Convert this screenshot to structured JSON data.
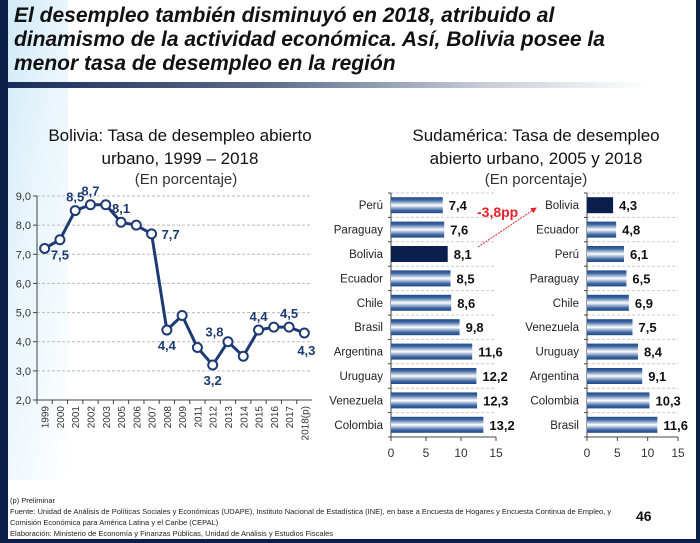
{
  "slide": {
    "title_lines": [
      "El desempleo también disminuyó en 2018, atribuido al",
      "dinamismo de la actividad económica. Así, Bolivia posee la",
      "menor tasa de desempleo en la región"
    ],
    "page_number": "46",
    "footer": [
      "(p) Preliminar",
      "Fuente: Unidad de Análisis de Políticas Sociales y Económicas (UDAPE), Instituto Nacional de Estadística (INE), en base a Encuesta de Hogares y Encuesta Continua de Empleo, y Comisión Económica para América Latina y el Caribe (CEPAL)",
      "Elaboración: Ministerio de Economía y Finanzas Públicas, Unidad de Análisis y Estudios Fiscales"
    ],
    "colors": {
      "line": "#1d3a73",
      "bar": "#2a5a9a",
      "highlight": "#0a1f4d",
      "annotation": "#e8202a"
    }
  },
  "chart_data": [
    {
      "type": "line",
      "title_lines": [
        "Bolivia: Tasa de desempleo abierto",
        "urbano, 1999 – 2018"
      ],
      "subtitle": "(En porcentaje)",
      "categories": [
        "1999",
        "2000",
        "2001",
        "2002",
        "2003",
        "2005",
        "2006",
        "2007",
        "2008",
        "2009",
        "2011",
        "2012",
        "2013",
        "2014",
        "2015",
        "2016",
        "2017",
        "2018(p)"
      ],
      "values": [
        7.2,
        7.5,
        8.5,
        8.7,
        8.7,
        8.1,
        8.0,
        7.7,
        4.4,
        4.9,
        3.8,
        3.2,
        4.0,
        3.5,
        4.4,
        4.5,
        4.5,
        4.3
      ],
      "data_labels": [
        null,
        "7,5",
        "8,5",
        "8,7",
        null,
        "8,1",
        null,
        "7,7",
        "4,4",
        null,
        "3,8",
        "3,2",
        null,
        null,
        "4,4",
        null,
        "4,5",
        "4,3"
      ],
      "ylim": [
        2.0,
        9.0
      ],
      "yticks": [
        "2,0",
        "3,0",
        "4,0",
        "5,0",
        "6,0",
        "7,0",
        "8,0",
        "9,0"
      ],
      "grid": true
    },
    {
      "type": "bar",
      "orientation": "horizontal",
      "title_lines": [
        "Sudamérica: Tasa de desempleo",
        "abierto urbano, 2005 y 2018"
      ],
      "subtitle": "(En porcentaje)",
      "panel": "2005",
      "categories": [
        "Perú",
        "Paraguay",
        "Bolivia",
        "Ecuador",
        "Chile",
        "Brasil",
        "Argentina",
        "Uruguay",
        "Venezuela",
        "Colombia"
      ],
      "values": [
        7.4,
        7.6,
        8.1,
        8.5,
        8.6,
        9.8,
        11.6,
        12.2,
        12.3,
        13.2
      ],
      "labels": [
        "7,4",
        "7,6",
        "8,1",
        "8,5",
        "8,6",
        "9,8",
        "11,6",
        "12,2",
        "12,3",
        "13,2"
      ],
      "highlight": "Bolivia",
      "xlim": [
        0,
        15
      ],
      "xticks": [
        "0",
        "5",
        "10",
        "15"
      ]
    },
    {
      "type": "bar",
      "orientation": "horizontal",
      "panel": "2018",
      "categories": [
        "Bolivia",
        "Ecuador",
        "Perú",
        "Paraguay",
        "Chile",
        "Venezuela",
        "Uruguay",
        "Argentina",
        "Colombia",
        "Brasil"
      ],
      "values": [
        4.3,
        4.8,
        6.1,
        6.5,
        6.9,
        7.5,
        8.4,
        9.1,
        10.3,
        11.6
      ],
      "labels": [
        "4,3",
        "4,8",
        "6,1",
        "6,5",
        "6,9",
        "7,5",
        "8,4",
        "9,1",
        "10,3",
        "11,6"
      ],
      "highlight": "Bolivia",
      "xlim": [
        0,
        15
      ],
      "xticks": [
        "0",
        "5",
        "10",
        "15"
      ],
      "annotation": "-3,8pp"
    }
  ]
}
